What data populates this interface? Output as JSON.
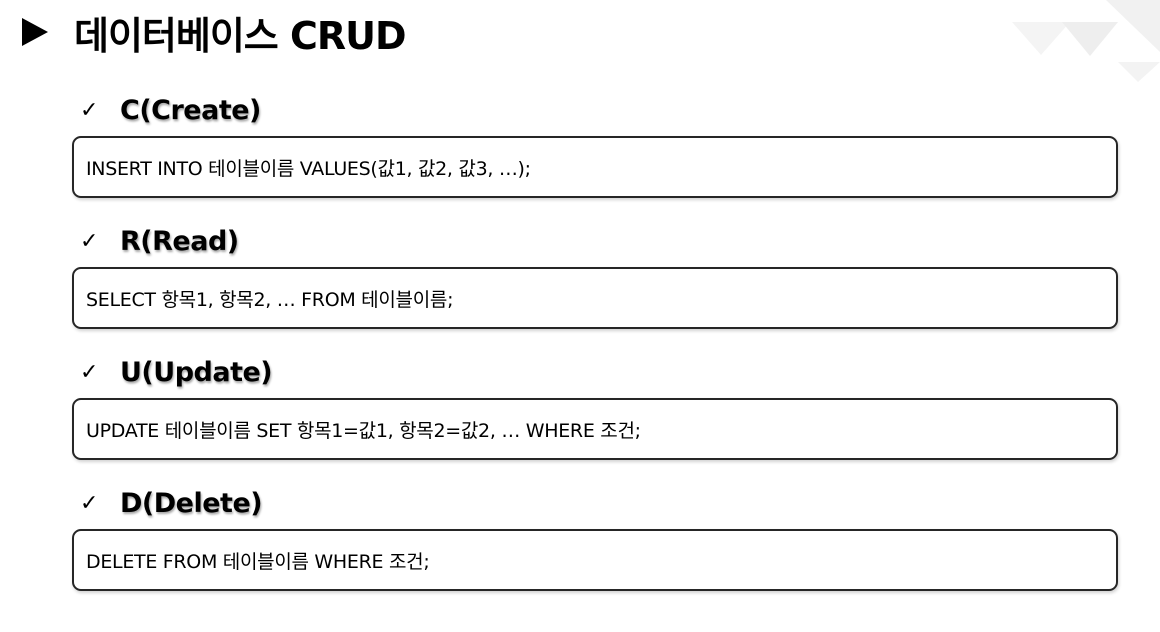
{
  "title": "데이터베이스 CRUD",
  "sections": [
    {
      "label": "C(Create)",
      "code": "INSERT INTO 테이블이름 VALUES(값1, 값2, 값3, …);"
    },
    {
      "label": "R(Read)",
      "code": "SELECT 항목1, 항목2, … FROM 테이블이름;"
    },
    {
      "label": "U(Update)",
      "code": "UPDATE 테이블이름 SET 항목1=값1, 항목2=값2, … WHERE 조건;"
    },
    {
      "label": "D(Delete)",
      "code": "DELETE FROM 테이블이름 WHERE 조건;"
    }
  ],
  "check_symbol": "✓",
  "colors": {
    "text": "#000000",
    "box_border": "#262626",
    "decoration": "#f2f2f2"
  },
  "icons": [
    "triangle-right-icon",
    "check-icon",
    "triangle-decoration-icon"
  ]
}
